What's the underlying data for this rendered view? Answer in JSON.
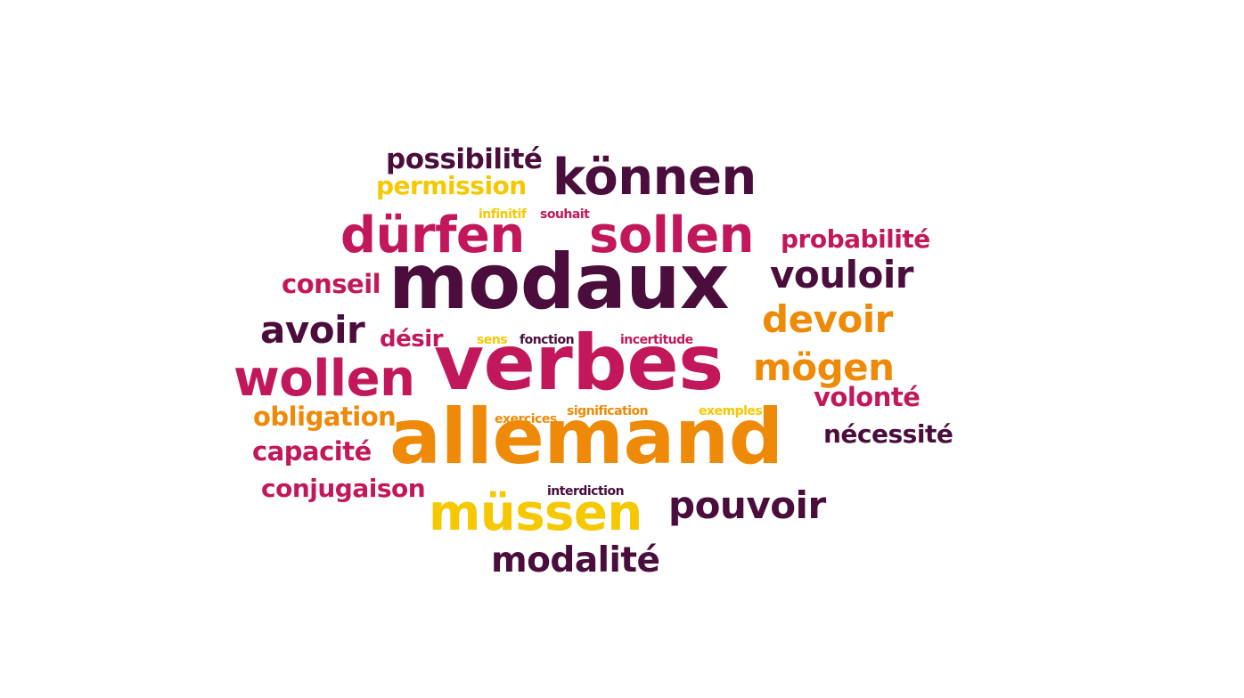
{
  "cloud": {
    "colors": {
      "plum": "#4a0d3c",
      "crimson": "#c2185b",
      "orange": "#ee8a07",
      "yellow": "#f5c800"
    },
    "words": {
      "possibilite": "possibilité",
      "permission": "permission",
      "konnen": "können",
      "infinitif": "infinitif",
      "souhait": "souhait",
      "durfen": "dürfen",
      "sollen": "sollen",
      "probabilite": "probabilité",
      "conseil": "conseil",
      "modaux": "modaux",
      "vouloir": "vouloir",
      "avoir": "avoir",
      "devoir": "devoir",
      "desir": "désir",
      "sens": "sens",
      "fonction": "fonction",
      "incertitude": "incertitude",
      "wollen": "wollen",
      "verbes": "verbes",
      "mogen": "mögen",
      "volonte": "volonté",
      "obligation": "obligation",
      "exercices": "exercices",
      "signification": "signification",
      "exemples": "exemples",
      "necessite": "nécessité",
      "capacite": "capacité",
      "allemand": "allemand",
      "conjugaison": "conjugaison",
      "interdiction": "interdiction",
      "mussen": "müssen",
      "pouvoir": "pouvoir",
      "modalite": "modalité"
    }
  }
}
